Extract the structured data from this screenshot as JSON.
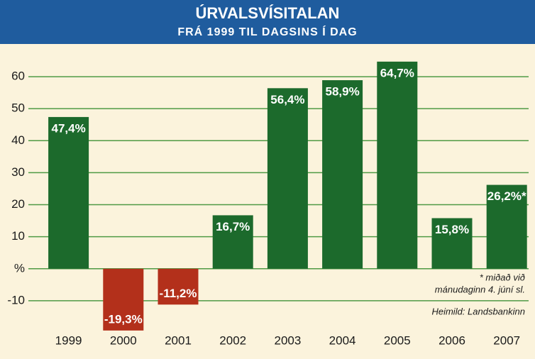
{
  "chart_data": {
    "type": "bar",
    "title": "ÚRVALSVÍSITALAN",
    "subtitle": "FRÁ 1999 TIL DAGSINS Í DAG",
    "categories": [
      "1999",
      "2000",
      "2001",
      "2002",
      "2003",
      "2004",
      "2005",
      "2006",
      "2007"
    ],
    "values": [
      47.4,
      -19.3,
      -11.2,
      16.7,
      56.4,
      58.9,
      64.7,
      15.8,
      26.2
    ],
    "value_labels": [
      "47,4%",
      "-19,3%",
      "-11,2%",
      "16,7%",
      "56,4%",
      "58,9%",
      "64,7%",
      "15,8%",
      "26,2%*"
    ],
    "colors": [
      "#1c6a2c",
      "#b3301b",
      "#b3301b",
      "#1c6a2c",
      "#1c6a2c",
      "#1c6a2c",
      "#1c6a2c",
      "#1c6a2c",
      "#1c6a2c"
    ],
    "ylim": [
      -20,
      66
    ],
    "yticks": [
      {
        "value": -10,
        "label": "-10"
      },
      {
        "value": 0,
        "label": "%"
      },
      10,
      20,
      30,
      40,
      50,
      60
    ],
    "grid": true,
    "annotations": [
      "* miðað við",
      "mánudaginn 4. júní sl.",
      "Heimild: Landsbankinn"
    ]
  }
}
